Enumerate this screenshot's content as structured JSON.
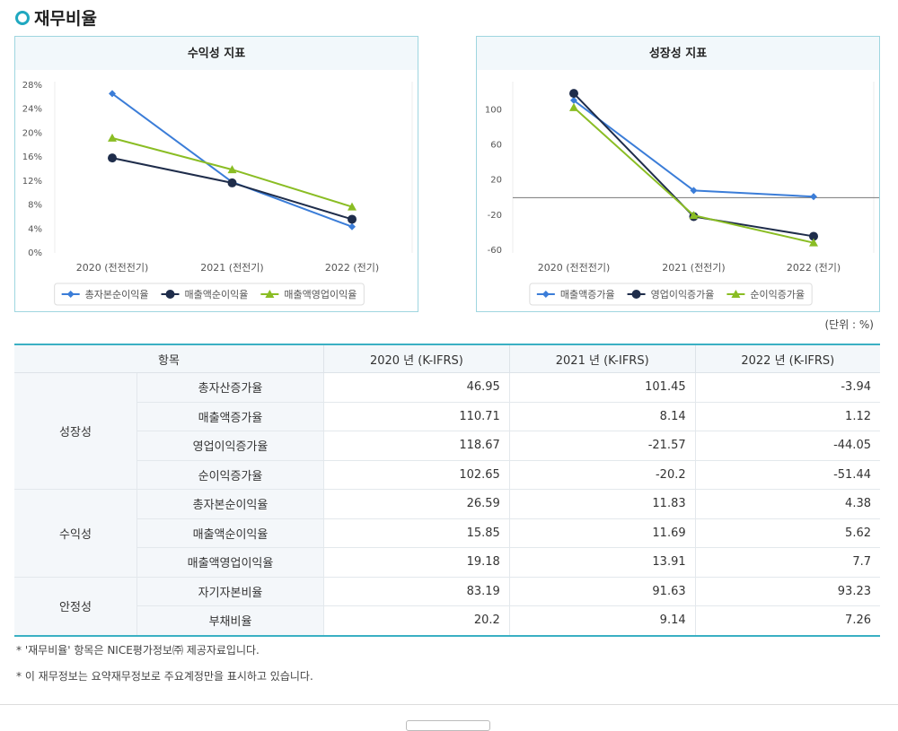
{
  "header": {
    "title": "재무비율"
  },
  "chart_data": [
    {
      "type": "line",
      "title": "수익성 지표",
      "categories": [
        "2020 (전전전기)",
        "2021 (전전기)",
        "2022 (전기)"
      ],
      "series": [
        {
          "name": "총자본순이익율",
          "color": "#3b7dd8",
          "marker": "diamond",
          "values": [
            26.59,
            11.83,
            4.38
          ]
        },
        {
          "name": "매출액순이익율",
          "color": "#1f2d4b",
          "marker": "circle",
          "values": [
            15.85,
            11.69,
            5.62
          ]
        },
        {
          "name": "매출액영업이익율",
          "color": "#8abd24",
          "marker": "triangle",
          "values": [
            19.18,
            13.91,
            7.7
          ]
        }
      ],
      "ylim": [
        0,
        28
      ],
      "yticks": [
        {
          "value": 0,
          "label": "0%"
        },
        {
          "value": 4,
          "label": "4%"
        },
        {
          "value": 8,
          "label": "8%"
        },
        {
          "value": 12,
          "label": "12%"
        },
        {
          "value": 16,
          "label": "16%"
        },
        {
          "value": 20,
          "label": "20%"
        },
        {
          "value": 24,
          "label": "24%"
        },
        {
          "value": 28,
          "label": "28%"
        }
      ],
      "legend": "bottom",
      "zero_line": false
    },
    {
      "type": "line",
      "title": "성장성 지표",
      "categories": [
        "2020 (전전전기)",
        "2021 (전전기)",
        "2022 (전기)"
      ],
      "series": [
        {
          "name": "매출액증가율",
          "color": "#3b7dd8",
          "marker": "diamond",
          "values": [
            110.71,
            8.14,
            1.12
          ]
        },
        {
          "name": "영업이익증가율",
          "color": "#1f2d4b",
          "marker": "circle",
          "values": [
            118.67,
            -21.57,
            -44.05
          ]
        },
        {
          "name": "순이익증가율",
          "color": "#8abd24",
          "marker": "triangle",
          "values": [
            102.65,
            -20.2,
            -51.44
          ]
        }
      ],
      "ylim": [
        -63,
        128
      ],
      "yticks": [
        -60,
        -20,
        20,
        60,
        100
      ],
      "legend": "bottom",
      "zero_line": true
    }
  ],
  "unit_note": "(단위 : %)",
  "table": {
    "header": [
      "항목",
      "2020 년 (K-IFRS)",
      "2021 년 (K-IFRS)",
      "2022 년 (K-IFRS)"
    ],
    "groups": [
      {
        "name": "성장성",
        "rows": [
          [
            "총자산증가율",
            46.95,
            101.45,
            -3.94
          ],
          [
            "매출액증가율",
            110.71,
            8.14,
            1.12
          ],
          [
            "영업이익증가율",
            118.67,
            -21.57,
            -44.05
          ],
          [
            "순이익증가율",
            102.65,
            -20.2,
            -51.44
          ]
        ]
      },
      {
        "name": "수익성",
        "rows": [
          [
            "총자본순이익율",
            26.59,
            11.83,
            4.38
          ],
          [
            "매출액순이익율",
            15.85,
            11.69,
            5.62
          ],
          [
            "매출액영업이익율",
            19.18,
            13.91,
            7.7
          ]
        ]
      },
      {
        "name": "안정성",
        "rows": [
          [
            "자기자본비율",
            83.19,
            91.63,
            93.23
          ],
          [
            "부채비율",
            20.2,
            9.14,
            7.26
          ]
        ]
      }
    ]
  },
  "notes": [
    "* '재무비율' 항목은 NICE평가정보㈜ 제공자료입니다.",
    "* 이 재무정보는 요약재무정보로 주요계정만을 표시하고 있습니다."
  ]
}
